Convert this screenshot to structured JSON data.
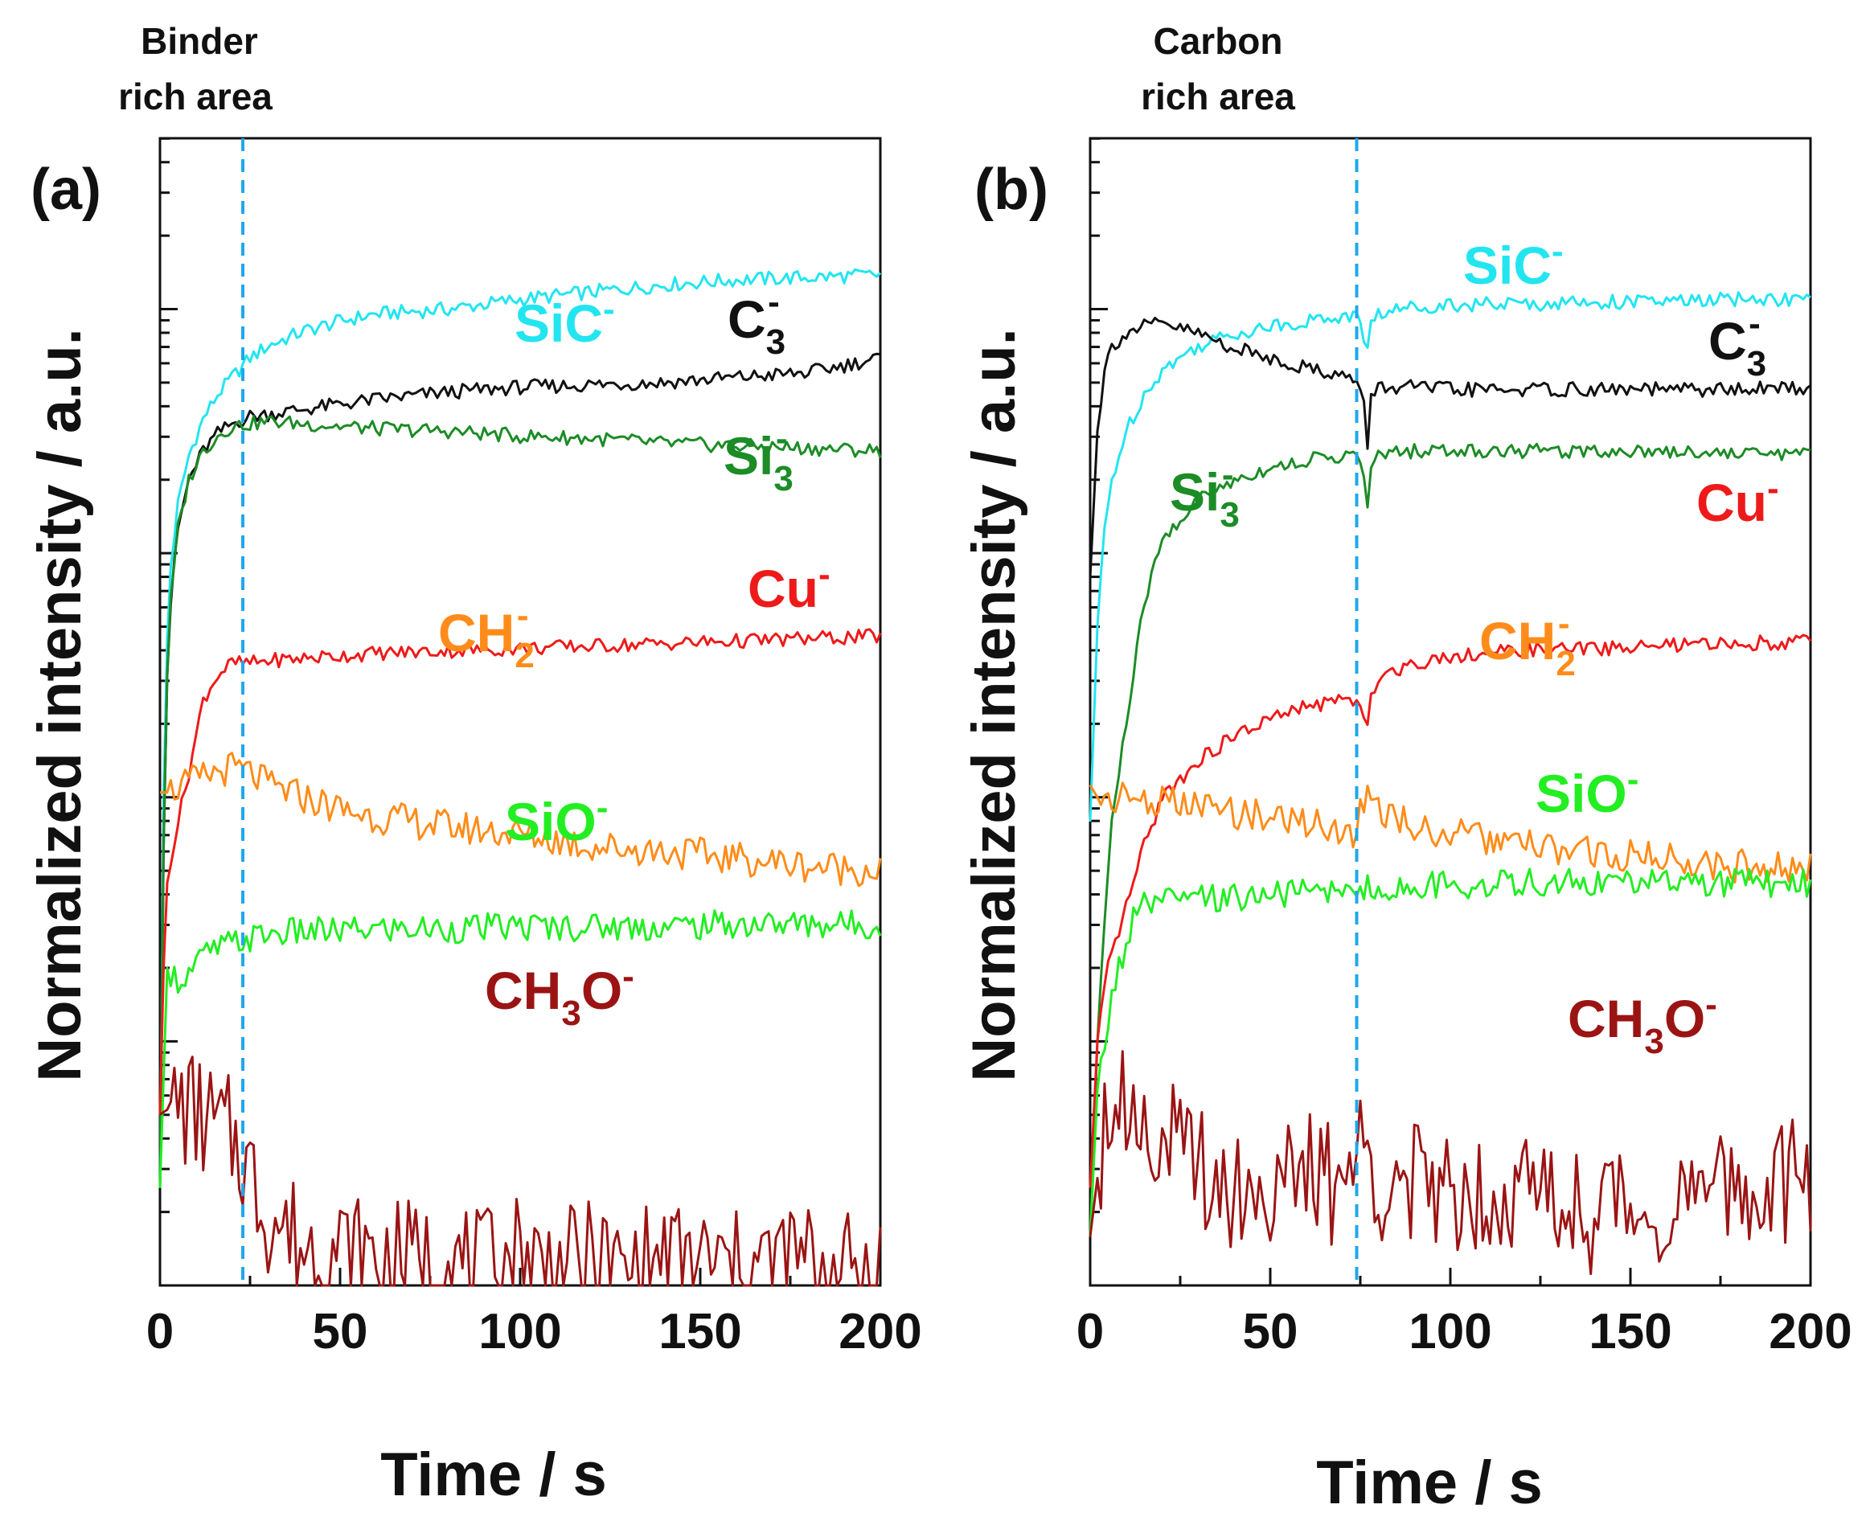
{
  "chart_data": [
    {
      "type": "line",
      "panel": "(a)",
      "annotation": [
        "Binder",
        "rich area"
      ],
      "xlabel": "Time / s",
      "ylabel": "Normalized intensity / a.u.",
      "xlim": [
        0,
        200
      ],
      "xticks": [
        "0",
        "50",
        "100",
        "150",
        "200"
      ],
      "yscale": "log",
      "ylim_decades": [
        -4,
        0.7
      ],
      "vline_time": 23,
      "series": [
        {
          "name": "SiC",
          "sup": "-",
          "color": "#22e5f0",
          "x": [
            0,
            1,
            2,
            3,
            5,
            8,
            12,
            16,
            20,
            25,
            30,
            40,
            50,
            60,
            80,
            100,
            120,
            140,
            160,
            180,
            200
          ],
          "y": [
            -3.6,
            -2.0,
            -1.35,
            -1.05,
            -0.8,
            -0.6,
            -0.45,
            -0.35,
            -0.28,
            -0.2,
            -0.15,
            -0.09,
            -0.05,
            -0.02,
            0.0,
            0.04,
            0.07,
            0.1,
            0.12,
            0.13,
            0.14
          ]
        },
        {
          "name": "C",
          "sub": "3",
          "sup": "-",
          "color": "#111111",
          "x": [
            0,
            1,
            2,
            3,
            5,
            8,
            12,
            16,
            20,
            25,
            30,
            40,
            50,
            60,
            80,
            100,
            120,
            140,
            160,
            180,
            200
          ],
          "y": [
            -3.6,
            -2.2,
            -1.5,
            -1.2,
            -0.9,
            -0.7,
            -0.58,
            -0.51,
            -0.47,
            -0.44,
            -0.43,
            -0.41,
            -0.39,
            -0.37,
            -0.34,
            -0.32,
            -0.31,
            -0.3,
            -0.28,
            -0.26,
            -0.2
          ]
        },
        {
          "name": "Si",
          "sub": "3",
          "sup": "-",
          "color": "#1c8c26",
          "x": [
            0,
            1,
            2,
            3,
            5,
            8,
            12,
            16,
            20,
            25,
            30,
            40,
            50,
            60,
            80,
            100,
            120,
            140,
            160,
            180,
            200
          ],
          "y": [
            -3.6,
            -2.2,
            -1.5,
            -1.2,
            -0.9,
            -0.7,
            -0.58,
            -0.52,
            -0.48,
            -0.47,
            -0.46,
            -0.47,
            -0.48,
            -0.49,
            -0.5,
            -0.52,
            -0.53,
            -0.55,
            -0.56,
            -0.57,
            -0.58
          ]
        },
        {
          "name": "Cu",
          "sup": "-",
          "color": "#ee1a1a",
          "x": [
            0,
            1,
            2,
            3,
            5,
            8,
            12,
            16,
            20,
            25,
            30,
            40,
            50,
            60,
            80,
            100,
            120,
            140,
            160,
            180,
            200
          ],
          "y": [
            -3.3,
            -2.7,
            -2.35,
            -2.25,
            -2.1,
            -1.9,
            -1.6,
            -1.5,
            -1.45,
            -1.45,
            -1.44,
            -1.43,
            -1.42,
            -1.41,
            -1.4,
            -1.39,
            -1.38,
            -1.37,
            -1.36,
            -1.35,
            -1.34
          ]
        },
        {
          "name": "CH",
          "sub": "2",
          "sup": "-",
          "color": "#ff8c1a",
          "x": [
            0,
            2,
            5,
            10,
            15,
            20,
            25,
            30,
            40,
            50,
            60,
            80,
            100,
            120,
            140,
            160,
            180,
            200
          ],
          "y": [
            -1.98,
            -1.98,
            -1.96,
            -1.93,
            -1.9,
            -1.88,
            -1.9,
            -1.95,
            -2.0,
            -2.05,
            -2.08,
            -2.12,
            -2.15,
            -2.2,
            -2.22,
            -2.25,
            -2.28,
            -2.3
          ]
        },
        {
          "name": "SiO",
          "sup": "-",
          "color": "#22ee22",
          "x": [
            0,
            2,
            5,
            8,
            12,
            16,
            20,
            25,
            30,
            40,
            50,
            60,
            80,
            100,
            120,
            140,
            160,
            180,
            200
          ],
          "y": [
            -3.6,
            -2.7,
            -2.75,
            -2.72,
            -2.65,
            -2.62,
            -2.6,
            -2.58,
            -2.56,
            -2.55,
            -2.55,
            -2.54,
            -2.54,
            -2.53,
            -2.53,
            -2.53,
            -2.52,
            -2.52,
            -2.52
          ]
        },
        {
          "name": "CH",
          "sub": "3",
          "tail": "O",
          "sup": "-",
          "color": "#9b1414",
          "x": [
            0,
            5,
            10,
            15,
            20,
            23,
            25,
            30,
            40,
            50,
            60,
            70,
            80,
            90,
            100,
            110,
            120,
            130,
            140,
            150,
            160,
            170,
            180,
            190,
            200
          ],
          "y": [
            -3.3,
            -3.25,
            -3.3,
            -3.35,
            -3.4,
            -3.45,
            -3.55,
            -3.7,
            -3.85,
            -3.85,
            -3.9,
            -3.9,
            -3.9,
            -3.95,
            -3.85,
            -3.95,
            -3.9,
            -3.95,
            -3.9,
            -3.9,
            -3.95,
            -3.9,
            -3.9,
            -3.95,
            -3.9
          ]
        }
      ]
    },
    {
      "type": "line",
      "panel": "(b)",
      "annotation": [
        "Carbon",
        "rich area"
      ],
      "xlabel": "Time / s",
      "ylabel": "Normalized intensity / a.u.",
      "xlim": [
        0,
        200
      ],
      "xticks": [
        "0",
        "50",
        "100",
        "150",
        "200"
      ],
      "yscale": "log",
      "ylim_decades": [
        -4,
        0.7
      ],
      "vline_time": 74,
      "series": [
        {
          "name": "SiC",
          "sup": "-",
          "color": "#22e5f0",
          "x": [
            0,
            2,
            4,
            6,
            10,
            15,
            20,
            30,
            40,
            50,
            60,
            70,
            74,
            76,
            77,
            78,
            80,
            90,
            100,
            120,
            140,
            160,
            180,
            200
          ],
          "y": [
            -2.1,
            -1.3,
            -0.9,
            -0.7,
            -0.5,
            -0.35,
            -0.25,
            -0.15,
            -0.1,
            -0.07,
            -0.05,
            -0.03,
            -0.03,
            -0.12,
            -0.15,
            -0.05,
            -0.02,
            0.01,
            0.02,
            0.02,
            0.03,
            0.03,
            0.04,
            0.04
          ]
        },
        {
          "name": "C",
          "sub": "3",
          "sup": "-",
          "color": "#111111",
          "x": [
            0,
            2,
            4,
            6,
            10,
            15,
            20,
            30,
            40,
            50,
            60,
            70,
            74,
            76,
            77,
            78,
            80,
            90,
            100,
            120,
            140,
            160,
            180,
            200
          ],
          "y": [
            -1.1,
            -0.5,
            -0.25,
            -0.15,
            -0.1,
            -0.07,
            -0.06,
            -0.1,
            -0.16,
            -0.2,
            -0.24,
            -0.27,
            -0.3,
            -0.4,
            -0.55,
            -0.36,
            -0.32,
            -0.32,
            -0.33,
            -0.33,
            -0.33,
            -0.33,
            -0.33,
            -0.32
          ]
        },
        {
          "name": "Si",
          "sub": "3",
          "sup": "-",
          "color": "#1c8c26",
          "x": [
            0,
            2,
            4,
            6,
            10,
            15,
            20,
            30,
            40,
            50,
            60,
            70,
            74,
            76,
            77,
            78,
            80,
            90,
            100,
            120,
            140,
            160,
            180,
            200
          ],
          "y": [
            -3.8,
            -3.0,
            -2.5,
            -2.1,
            -1.7,
            -1.2,
            -0.95,
            -0.78,
            -0.7,
            -0.65,
            -0.62,
            -0.6,
            -0.6,
            -0.7,
            -0.8,
            -0.65,
            -0.6,
            -0.58,
            -0.58,
            -0.58,
            -0.58,
            -0.58,
            -0.59,
            -0.59
          ]
        },
        {
          "name": "Cu",
          "sup": "-",
          "color": "#ee1a1a",
          "x": [
            0,
            2,
            5,
            10,
            15,
            20,
            30,
            40,
            50,
            60,
            70,
            74,
            76,
            77,
            78,
            80,
            90,
            100,
            120,
            140,
            160,
            180,
            200
          ],
          "y": [
            -3.6,
            -3.0,
            -2.7,
            -2.45,
            -2.2,
            -2.0,
            -1.85,
            -1.75,
            -1.68,
            -1.63,
            -1.6,
            -1.6,
            -1.7,
            -1.72,
            -1.6,
            -1.5,
            -1.45,
            -1.42,
            -1.4,
            -1.39,
            -1.38,
            -1.37,
            -1.36
          ]
        },
        {
          "name": "CH",
          "sub": "2",
          "sup": "-",
          "color": "#ff8c1a",
          "x": [
            0,
            2,
            5,
            10,
            20,
            30,
            40,
            50,
            60,
            70,
            74,
            76,
            77,
            78,
            80,
            90,
            100,
            120,
            140,
            160,
            180,
            200
          ],
          "y": [
            -1.95,
            -2.0,
            -2.0,
            -2.0,
            -2.02,
            -2.04,
            -2.06,
            -2.08,
            -2.1,
            -2.13,
            -2.15,
            -2.0,
            -1.9,
            -1.98,
            -2.05,
            -2.12,
            -2.15,
            -2.2,
            -2.23,
            -2.25,
            -2.28,
            -2.3
          ]
        },
        {
          "name": "SiO",
          "sup": "-",
          "color": "#22ee22",
          "x": [
            0,
            2,
            5,
            8,
            10,
            12,
            15,
            20,
            30,
            40,
            50,
            60,
            70,
            74,
            76,
            77,
            78,
            80,
            90,
            100,
            120,
            140,
            160,
            180,
            200
          ],
          "y": [
            -3.8,
            -3.2,
            -2.9,
            -2.7,
            -2.6,
            -2.5,
            -2.45,
            -2.43,
            -2.42,
            -2.41,
            -2.4,
            -2.39,
            -2.38,
            -2.36,
            -2.45,
            -2.35,
            -2.38,
            -2.38,
            -2.37,
            -2.36,
            -2.35,
            -2.35,
            -2.35,
            -2.35,
            -2.35
          ]
        },
        {
          "name": "CH",
          "sub": "3",
          "tail": "O",
          "sup": "-",
          "color": "#9b1414",
          "x": [
            0,
            5,
            10,
            15,
            20,
            30,
            40,
            50,
            60,
            70,
            74,
            76,
            78,
            80,
            90,
            100,
            110,
            120,
            130,
            140,
            150,
            160,
            170,
            180,
            190,
            200
          ],
          "y": [
            -3.8,
            -3.2,
            -3.25,
            -3.3,
            -3.4,
            -3.5,
            -3.6,
            -3.6,
            -3.55,
            -3.6,
            -3.45,
            -3.45,
            -3.5,
            -3.55,
            -3.6,
            -3.6,
            -3.6,
            -3.6,
            -3.65,
            -3.7,
            -3.65,
            -3.7,
            -3.65,
            -3.6,
            -3.6,
            -3.55
          ]
        }
      ]
    }
  ]
}
